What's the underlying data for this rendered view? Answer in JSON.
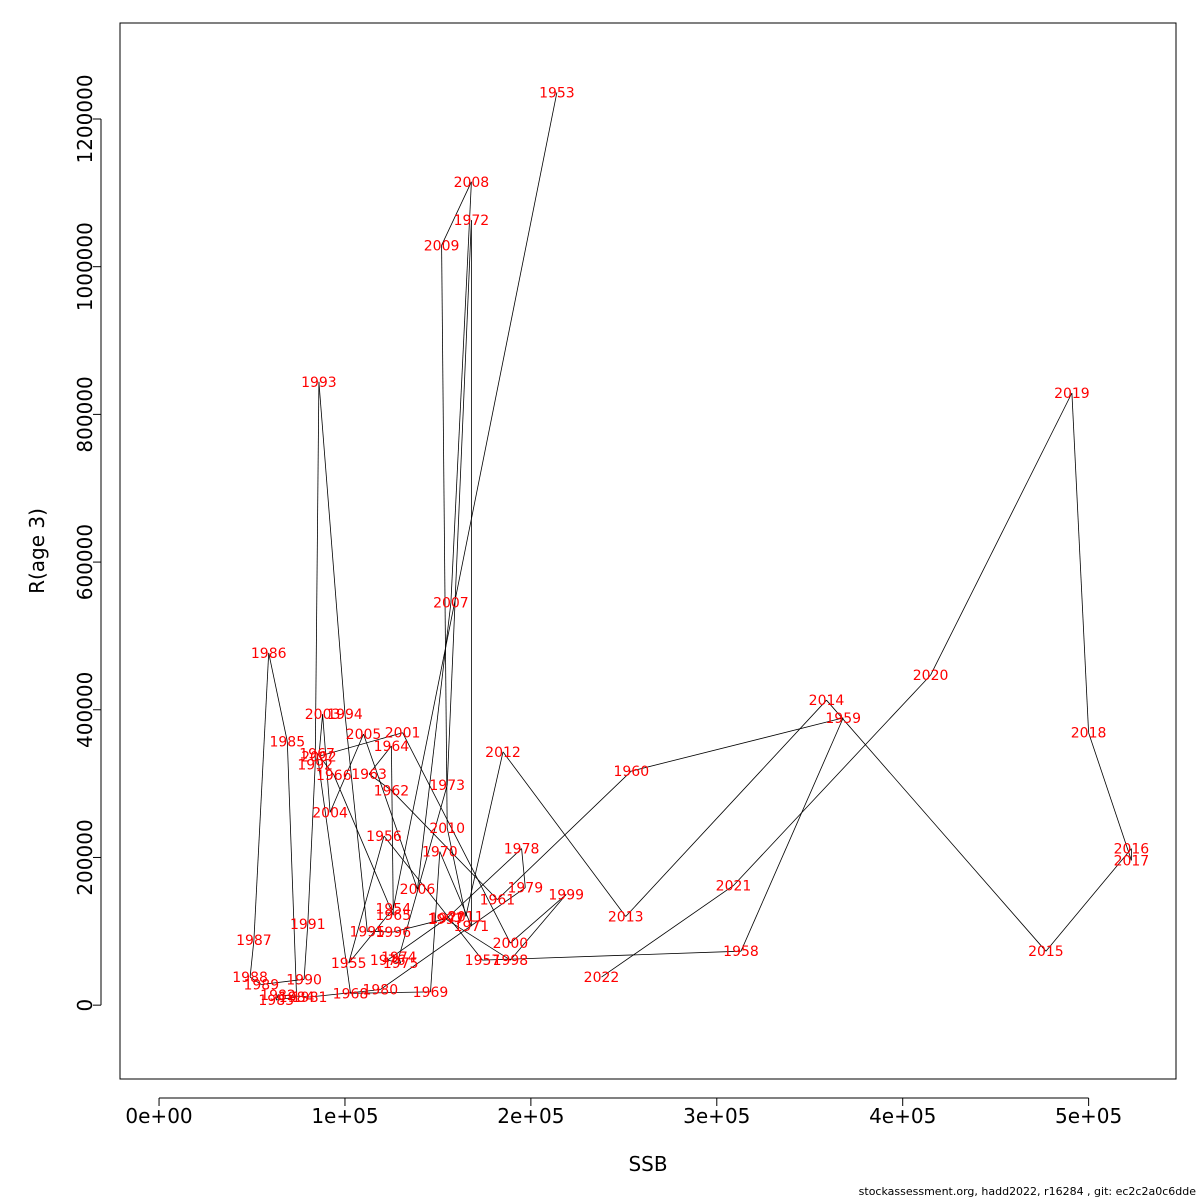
{
  "footer": "stockassessment.org, hadd2022, r16284 , git: ec2c2a0c6dde",
  "chart_data": {
    "type": "line",
    "title": "",
    "xlabel": "SSB",
    "ylabel": "R(age 3)",
    "xlim": [
      -21000,
      547000
    ],
    "ylim": [
      -100000,
      1330000
    ],
    "x_ticks": [
      0,
      100000,
      200000,
      300000,
      400000,
      500000
    ],
    "x_tick_labels": [
      "0e+00",
      "1e+05",
      "2e+05",
      "3e+05",
      "4e+05",
      "5e+05"
    ],
    "y_ticks": [
      0,
      200000,
      400000,
      600000,
      800000,
      1000000,
      1200000
    ],
    "y_tick_labels": [
      "0",
      "200000",
      "400000",
      "600000",
      "800000",
      "1000000",
      "1200000"
    ],
    "grid": false,
    "line_color": "#000000",
    "label_color": "#ff0000",
    "points": [
      {
        "year": "1953",
        "ssb": 214000,
        "r": 1236000
      },
      {
        "year": "1954",
        "ssb": 126000,
        "r": 131000
      },
      {
        "year": "1955",
        "ssb": 102000,
        "r": 57000
      },
      {
        "year": "1956",
        "ssb": 121000,
        "r": 229000
      },
      {
        "year": "1957",
        "ssb": 174000,
        "r": 61000
      },
      {
        "year": "1958",
        "ssb": 313000,
        "r": 73000
      },
      {
        "year": "1959",
        "ssb": 368000,
        "r": 389000
      },
      {
        "year": "1960",
        "ssb": 254000,
        "r": 317000
      },
      {
        "year": "1961",
        "ssb": 182000,
        "r": 143000
      },
      {
        "year": "1962",
        "ssb": 125000,
        "r": 291000
      },
      {
        "year": "1963",
        "ssb": 113000,
        "r": 313000
      },
      {
        "year": "1964",
        "ssb": 125000,
        "r": 351000
      },
      {
        "year": "1965",
        "ssb": 126000,
        "r": 122000
      },
      {
        "year": "1966",
        "ssb": 94000,
        "r": 312000
      },
      {
        "year": "1967",
        "ssb": 85000,
        "r": 341000
      },
      {
        "year": "1968",
        "ssb": 103000,
        "r": 16000
      },
      {
        "year": "1969",
        "ssb": 146000,
        "r": 18000
      },
      {
        "year": "1970",
        "ssb": 151000,
        "r": 208000
      },
      {
        "year": "1971",
        "ssb": 168000,
        "r": 107000
      },
      {
        "year": "1972",
        "ssb": 168000,
        "r": 1063000
      },
      {
        "year": "1973",
        "ssb": 155000,
        "r": 298000
      },
      {
        "year": "1974",
        "ssb": 129000,
        "r": 65000
      },
      {
        "year": "1975",
        "ssb": 130000,
        "r": 57000
      },
      {
        "year": "1976",
        "ssb": 123000,
        "r": 61000
      },
      {
        "year": "1977",
        "ssb": 155000,
        "r": 118000
      },
      {
        "year": "1978",
        "ssb": 195000,
        "r": 212000
      },
      {
        "year": "1979",
        "ssb": 197000,
        "r": 159000
      },
      {
        "year": "1980",
        "ssb": 119000,
        "r": 21000
      },
      {
        "year": "1981",
        "ssb": 81000,
        "r": 11000
      },
      {
        "year": "1982",
        "ssb": 64000,
        "r": 14000
      },
      {
        "year": "1983",
        "ssb": 63000,
        "r": 7000
      },
      {
        "year": "1984",
        "ssb": 74000,
        "r": 11000
      },
      {
        "year": "1985",
        "ssb": 69000,
        "r": 357000
      },
      {
        "year": "1986",
        "ssb": 59000,
        "r": 477000
      },
      {
        "year": "1987",
        "ssb": 51000,
        "r": 88000
      },
      {
        "year": "1988",
        "ssb": 49000,
        "r": 38000
      },
      {
        "year": "1989",
        "ssb": 55000,
        "r": 28000
      },
      {
        "year": "1990",
        "ssb": 78000,
        "r": 35000
      },
      {
        "year": "1991",
        "ssb": 80000,
        "r": 110000
      },
      {
        "year": "1992",
        "ssb": 84000,
        "r": 326000
      },
      {
        "year": "1993",
        "ssb": 86000,
        "r": 844000
      },
      {
        "year": "1994",
        "ssb": 100000,
        "r": 394000
      },
      {
        "year": "1995",
        "ssb": 112000,
        "r": 100000
      },
      {
        "year": "1996",
        "ssb": 126000,
        "r": 99000
      },
      {
        "year": "1997",
        "ssb": 154000,
        "r": 117000
      },
      {
        "year": "1998",
        "ssb": 189000,
        "r": 61000
      },
      {
        "year": "1999",
        "ssb": 219000,
        "r": 150000
      },
      {
        "year": "2000",
        "ssb": 189000,
        "r": 84000
      },
      {
        "year": "2001",
        "ssb": 131000,
        "r": 369000
      },
      {
        "year": "2002",
        "ssb": 86000,
        "r": 337000
      },
      {
        "year": "2003",
        "ssb": 88000,
        "r": 394000
      },
      {
        "year": "2004",
        "ssb": 92000,
        "r": 261000
      },
      {
        "year": "2005",
        "ssb": 110000,
        "r": 367000
      },
      {
        "year": "2006",
        "ssb": 139000,
        "r": 157000
      },
      {
        "year": "2007",
        "ssb": 157000,
        "r": 545000
      },
      {
        "year": "2008",
        "ssb": 168000,
        "r": 1115000
      },
      {
        "year": "2009",
        "ssb": 152000,
        "r": 1029000
      },
      {
        "year": "2010",
        "ssb": 155000,
        "r": 240000
      },
      {
        "year": "2011",
        "ssb": 165000,
        "r": 120000
      },
      {
        "year": "2012",
        "ssb": 185000,
        "r": 343000
      },
      {
        "year": "2013",
        "ssb": 251000,
        "r": 120000
      },
      {
        "year": "2014",
        "ssb": 359000,
        "r": 413000
      },
      {
        "year": "2015",
        "ssb": 477000,
        "r": 73000
      },
      {
        "year": "2016",
        "ssb": 523000,
        "r": 212000
      },
      {
        "year": "2017",
        "ssb": 523000,
        "r": 196000
      },
      {
        "year": "2018",
        "ssb": 500000,
        "r": 369000
      },
      {
        "year": "2019",
        "ssb": 491000,
        "r": 829000
      },
      {
        "year": "2020",
        "ssb": 415000,
        "r": 447000
      },
      {
        "year": "2021",
        "ssb": 309000,
        "r": 162000
      },
      {
        "year": "2022",
        "ssb": 238000,
        "r": 38000
      }
    ]
  }
}
